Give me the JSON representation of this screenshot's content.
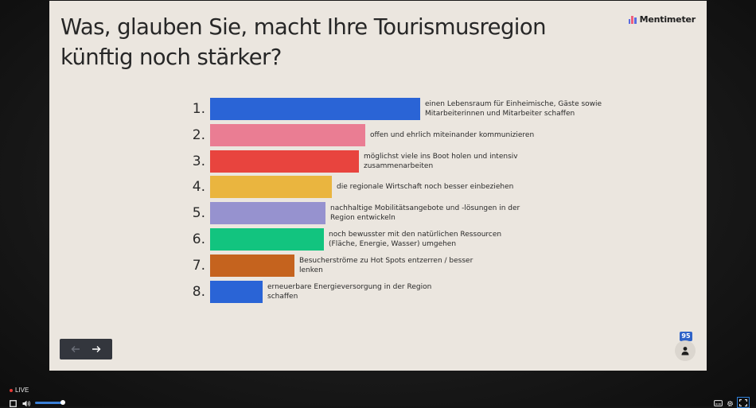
{
  "slide": {
    "title": "Was, glauben Sie, macht Ihre Tourismusregion künftig noch stärker?",
    "brand": "Mentimeter"
  },
  "chart_data": {
    "type": "bar",
    "orientation": "horizontal",
    "ranks": [
      "1.",
      "2.",
      "3.",
      "4.",
      "5.",
      "6.",
      "7.",
      "8."
    ],
    "categories": [
      "einen Lebensraum für Einheimische, Gäste sowie Mitarbeiterinnen und Mitarbeiter schaffen",
      "offen und ehrlich miteinander kommunizieren",
      "möglichst viele ins Boot holen und intensiv zusammenarbeiten",
      "die regionale Wirtschaft noch besser einbeziehen",
      "nachhaltige Mobilitätsangebote und -lösungen in der Region entwickeln",
      "noch bewusster mit den natürlichen Ressourcen (Fläche, Energie, Wasser) umgehen",
      "Besucherströme zu Hot Spots entzerren / besser lenken",
      "erneuerbare Energieversorgung in der Region schaffen"
    ],
    "values": [
      100,
      74,
      71,
      58,
      55,
      54,
      40,
      25
    ],
    "colors": [
      "#2a64d6",
      "#ea7d93",
      "#e8443e",
      "#eab53f",
      "#9692cf",
      "#12c47f",
      "#c5631e",
      "#2a64d6"
    ],
    "xlabel": "",
    "ylabel": ""
  },
  "controls": {
    "participants": "95",
    "live_label": "LIVE"
  },
  "icons": {
    "prev": "arrow-left-icon",
    "next": "arrow-right-icon",
    "participant": "person-icon"
  }
}
